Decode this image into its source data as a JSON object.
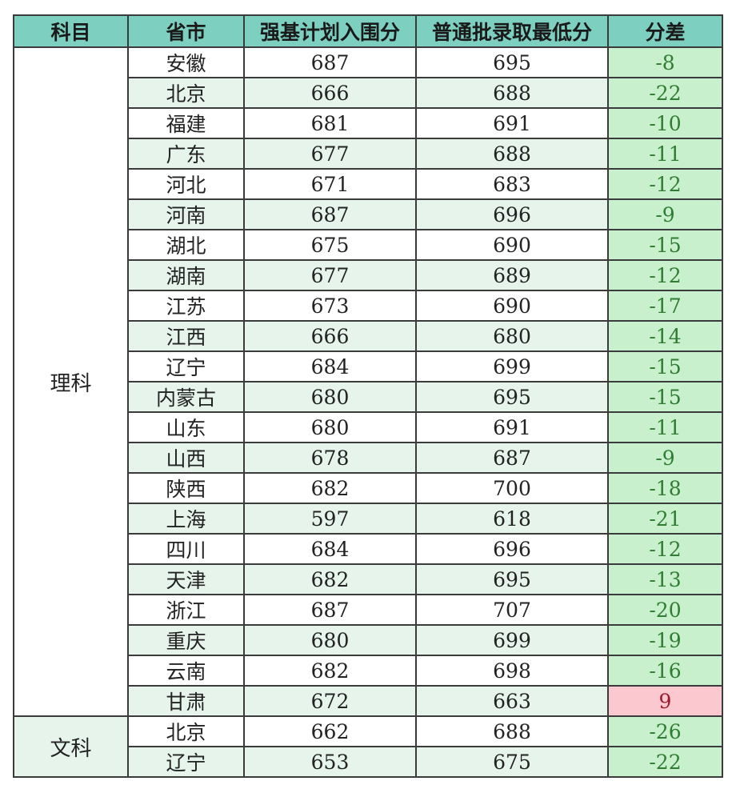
{
  "headers": [
    "科目",
    "省市",
    "强基计划入围分",
    "普通批录取最低分",
    "分差"
  ],
  "groups": [
    {
      "subject": "理科",
      "rows": [
        {
          "province": "安徽",
          "qiangji": "687",
          "normal": "695",
          "diff": "-8"
        },
        {
          "province": "北京",
          "qiangji": "666",
          "normal": "688",
          "diff": "-22"
        },
        {
          "province": "福建",
          "qiangji": "681",
          "normal": "691",
          "diff": "-10"
        },
        {
          "province": "广东",
          "qiangji": "677",
          "normal": "688",
          "diff": "-11"
        },
        {
          "province": "河北",
          "qiangji": "671",
          "normal": "683",
          "diff": "-12"
        },
        {
          "province": "河南",
          "qiangji": "687",
          "normal": "696",
          "diff": "-9"
        },
        {
          "province": "湖北",
          "qiangji": "675",
          "normal": "690",
          "diff": "-15"
        },
        {
          "province": "湖南",
          "qiangji": "677",
          "normal": "689",
          "diff": "-12"
        },
        {
          "province": "江苏",
          "qiangji": "673",
          "normal": "690",
          "diff": "-17"
        },
        {
          "province": "江西",
          "qiangji": "666",
          "normal": "680",
          "diff": "-14"
        },
        {
          "province": "辽宁",
          "qiangji": "684",
          "normal": "699",
          "diff": "-15"
        },
        {
          "province": "内蒙古",
          "qiangji": "680",
          "normal": "695",
          "diff": "-15"
        },
        {
          "province": "山东",
          "qiangji": "680",
          "normal": "691",
          "diff": "-11"
        },
        {
          "province": "山西",
          "qiangji": "678",
          "normal": "687",
          "diff": "-9"
        },
        {
          "province": "陕西",
          "qiangji": "682",
          "normal": "700",
          "diff": "-18"
        },
        {
          "province": "上海",
          "qiangji": "597",
          "normal": "618",
          "diff": "-21"
        },
        {
          "province": "四川",
          "qiangji": "684",
          "normal": "696",
          "diff": "-12"
        },
        {
          "province": "天津",
          "qiangji": "682",
          "normal": "695",
          "diff": "-13"
        },
        {
          "province": "浙江",
          "qiangji": "687",
          "normal": "707",
          "diff": "-20"
        },
        {
          "province": "重庆",
          "qiangji": "680",
          "normal": "699",
          "diff": "-19"
        },
        {
          "province": "云南",
          "qiangji": "682",
          "normal": "698",
          "diff": "-16"
        },
        {
          "province": "甘肃",
          "qiangji": "672",
          "normal": "663",
          "diff": "9"
        }
      ]
    },
    {
      "subject": "文科",
      "rows": [
        {
          "province": "北京",
          "qiangji": "662",
          "normal": "688",
          "diff": "-26"
        },
        {
          "province": "辽宁",
          "qiangji": "653",
          "normal": "675",
          "diff": "-22"
        }
      ]
    }
  ],
  "colors": {
    "header_bg": "#7dcfbf",
    "row_tint": "#e6f4ec",
    "diff_negative_bg": "#c9f0cd",
    "diff_negative_text": "#2f7d32",
    "diff_positive_bg": "#fbc8cf",
    "diff_positive_text": "#9c1b2b"
  }
}
